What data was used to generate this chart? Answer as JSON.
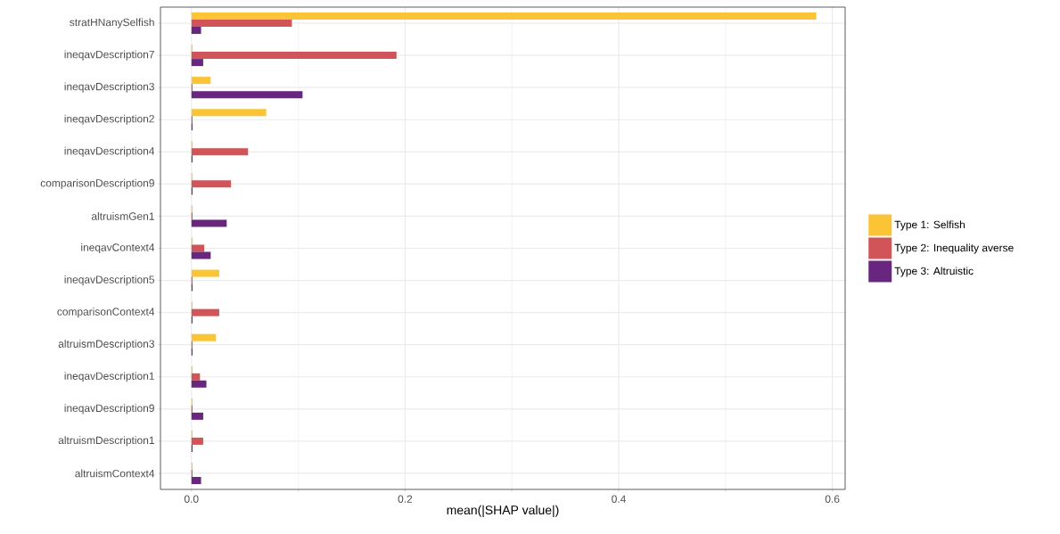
{
  "chart_data": {
    "type": "bar",
    "orientation": "horizontal",
    "xlabel": "mean(|SHAP value|)",
    "categories": [
      "stratHNanySelfish",
      "ineqavDescription7",
      "ineqavDescription3",
      "ineqavDescription2",
      "ineqavDescription4",
      "comparisonDescription9",
      "altruismGen1",
      "ineqavContext4",
      "ineqavDescription5",
      "comparisonContext4",
      "altruismDescription3",
      "ineqavDescription1",
      "ineqavDescription9",
      "altruismDescription1",
      "altruismContext4"
    ],
    "series": [
      {
        "name": "Type 1: Selfish",
        "color": "#fbc437",
        "values": [
          0.585,
          0.001,
          0.018,
          0.07,
          0.001,
          0.001,
          0.001,
          0.001,
          0.026,
          0.001,
          0.023,
          0.001,
          0.001,
          0.001,
          0.001
        ]
      },
      {
        "name": "Type 2: Inequality averse",
        "color": "#d15458",
        "values": [
          0.094,
          0.192,
          0.001,
          0.001,
          0.053,
          0.037,
          0.001,
          0.012,
          0.001,
          0.026,
          0.001,
          0.008,
          0.001,
          0.011,
          0.001
        ]
      },
      {
        "name": "Type 3: Altruistic",
        "color": "#68267e",
        "values": [
          0.009,
          0.011,
          0.104,
          0.001,
          0.001,
          0.001,
          0.033,
          0.018,
          0.001,
          0.001,
          0.001,
          0.014,
          0.011,
          0.001,
          0.009
        ]
      }
    ],
    "xlim": [
      -0.029,
      0.612
    ],
    "xticks": [
      {
        "value": 0,
        "label": "0.0"
      },
      0.2,
      0.4,
      0.6
    ],
    "grid": true,
    "legend": "right"
  }
}
